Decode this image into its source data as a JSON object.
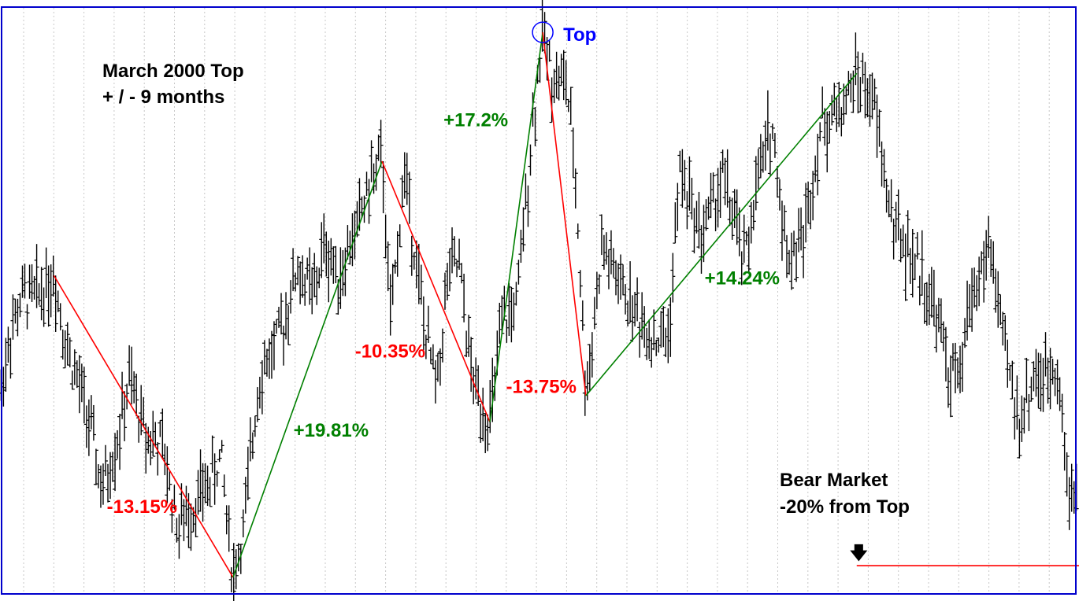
{
  "chart_data": {
    "type": "line",
    "style": "ohlc-price-bars-with-swing-lines",
    "grid": "vertical-dotted",
    "x_domain": [
      0,
      1000
    ],
    "y_domain": [
      0,
      100
    ],
    "annotations": {
      "title_line1": "March 2000 Top",
      "title_line2": "+ / - 9 months",
      "top_label": "Top",
      "bear_line1": "Bear Market",
      "bear_line2": "-20% from Top",
      "arrow_glyph": "🡇"
    },
    "swings": [
      {
        "from": [
          50,
          55.0
        ],
        "to": [
          216,
          3.5
        ],
        "label": "-13.15%",
        "direction": "down",
        "color": "#ff0000",
        "label_at": [
          99,
          14.5
        ]
      },
      {
        "from": [
          216,
          3.5
        ],
        "to": [
          354,
          74.5
        ],
        "label": "+19.81%",
        "direction": "up",
        "color": "#008000",
        "label_at": [
          272,
          27.5
        ]
      },
      {
        "from": [
          354,
          74.5
        ],
        "to": [
          454,
          30.0
        ],
        "label": "-10.35%",
        "direction": "down",
        "color": "#ff0000",
        "label_at": [
          329,
          41.0
        ]
      },
      {
        "from": [
          454,
          30.0
        ],
        "to": [
          503,
          96.5
        ],
        "label": "+17.2%",
        "direction": "up",
        "color": "#008000",
        "label_at": [
          411,
          80.5
        ]
      },
      {
        "from": [
          503,
          96.5
        ],
        "to": [
          543,
          34.5
        ],
        "label": "-13.75%",
        "direction": "down",
        "color": "#ff0000",
        "label_at": [
          469,
          35.0
        ]
      },
      {
        "from": [
          543,
          34.5
        ],
        "to": [
          794,
          89.5
        ],
        "label": "+14.24%",
        "direction": "up",
        "color": "#008000",
        "label_at": [
          653,
          53.5
        ]
      }
    ],
    "top_point": [
      503,
      96.5
    ],
    "bear_threshold": {
      "y": 5.5,
      "x_start": 794,
      "x_end": 1000,
      "color": "#ff0000"
    },
    "price_keypoints": [
      [
        0,
        34
      ],
      [
        8,
        44
      ],
      [
        20,
        51
      ],
      [
        35,
        52
      ],
      [
        50,
        55
      ],
      [
        62,
        43
      ],
      [
        80,
        32
      ],
      [
        95,
        18
      ],
      [
        110,
        28
      ],
      [
        120,
        37
      ],
      [
        135,
        28
      ],
      [
        150,
        26
      ],
      [
        165,
        12
      ],
      [
        180,
        16
      ],
      [
        195,
        20
      ],
      [
        205,
        24
      ],
      [
        216,
        3.5
      ],
      [
        226,
        12
      ],
      [
        240,
        38
      ],
      [
        260,
        45
      ],
      [
        275,
        56
      ],
      [
        292,
        52
      ],
      [
        300,
        60
      ],
      [
        315,
        55
      ],
      [
        330,
        63
      ],
      [
        345,
        72
      ],
      [
        354,
        74.5
      ],
      [
        362,
        47
      ],
      [
        375,
        73
      ],
      [
        395,
        44
      ],
      [
        405,
        36
      ],
      [
        415,
        55
      ],
      [
        425,
        57
      ],
      [
        438,
        37
      ],
      [
        454,
        30
      ],
      [
        465,
        46
      ],
      [
        480,
        51
      ],
      [
        493,
        80
      ],
      [
        503,
        96.5
      ],
      [
        512,
        89
      ],
      [
        525,
        88
      ],
      [
        534,
        70
      ],
      [
        543,
        34.5
      ],
      [
        558,
        60
      ],
      [
        575,
        53
      ],
      [
        592,
        48
      ],
      [
        608,
        44
      ],
      [
        620,
        45
      ],
      [
        630,
        73
      ],
      [
        650,
        62
      ],
      [
        670,
        72
      ],
      [
        690,
        57
      ],
      [
        700,
        69
      ],
      [
        715,
        81
      ],
      [
        730,
        58
      ],
      [
        745,
        62
      ],
      [
        760,
        80
      ],
      [
        775,
        83
      ],
      [
        785,
        85
      ],
      [
        794,
        89.5
      ],
      [
        810,
        84
      ],
      [
        825,
        66
      ],
      [
        840,
        59
      ],
      [
        855,
        55
      ],
      [
        870,
        47
      ],
      [
        880,
        38
      ],
      [
        890,
        37
      ],
      [
        898,
        50
      ],
      [
        910,
        56
      ],
      [
        918,
        60
      ],
      [
        930,
        43
      ],
      [
        945,
        30
      ],
      [
        958,
        38
      ],
      [
        968,
        37
      ],
      [
        980,
        41
      ],
      [
        990,
        17
      ],
      [
        1000,
        22
      ]
    ]
  }
}
